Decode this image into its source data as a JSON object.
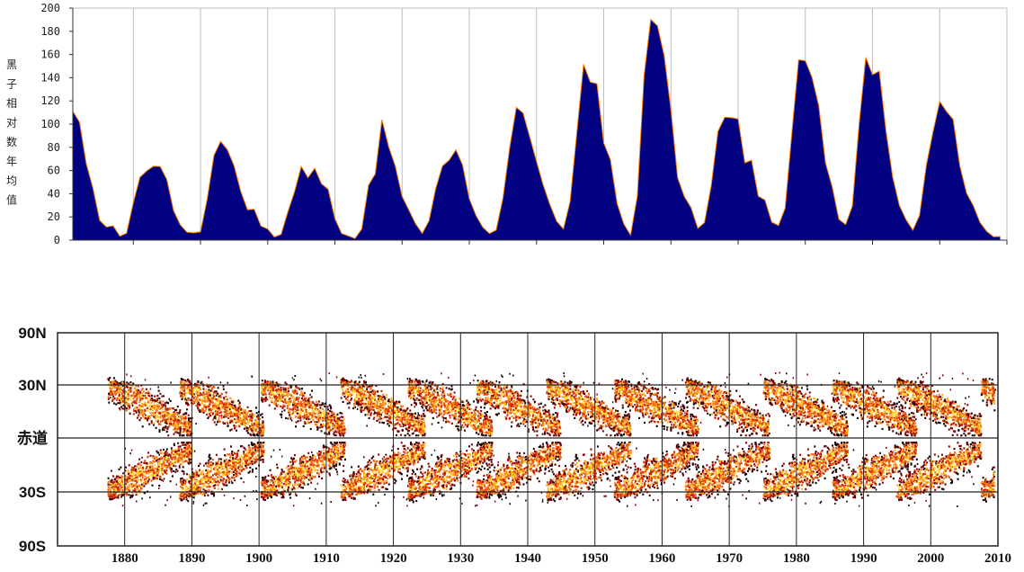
{
  "chart_data": [
    {
      "type": "area",
      "ylabel": "黑子相对数年均值",
      "ylim": [
        0,
        200
      ],
      "yticks": [
        "0",
        "20",
        "40",
        "60",
        "80",
        "100",
        "120",
        "140",
        "160",
        "180",
        "200"
      ],
      "xlim": [
        1871,
        2010
      ],
      "grid": true,
      "fill_color": "#000080",
      "edge_color": "#ff8000",
      "series": [
        {
          "x": [
            1871,
            1872,
            1873,
            1874,
            1875,
            1876,
            1877,
            1878,
            1879,
            1880,
            1881,
            1882,
            1883,
            1884,
            1885,
            1886,
            1887,
            1888,
            1889,
            1890,
            1891,
            1892,
            1893,
            1894,
            1895,
            1896,
            1897,
            1898,
            1899,
            1900,
            1901,
            1902,
            1903,
            1904,
            1905,
            1906,
            1907,
            1908,
            1909,
            1910,
            1911,
            1912,
            1913,
            1914,
            1915,
            1916,
            1917,
            1918,
            1919,
            1920,
            1921,
            1922,
            1923,
            1924,
            1925,
            1926,
            1927,
            1928,
            1929,
            1930,
            1931,
            1932,
            1933,
            1934,
            1935,
            1936,
            1937,
            1938,
            1939,
            1940,
            1941,
            1942,
            1943,
            1944,
            1945,
            1946,
            1947,
            1948,
            1949,
            1950,
            1951,
            1952,
            1953,
            1954,
            1955,
            1956,
            1957,
            1958,
            1959,
            1960,
            1961,
            1962,
            1963,
            1964,
            1965,
            1966,
            1967,
            1968,
            1969,
            1970,
            1971,
            1972,
            1973,
            1974,
            1975,
            1976,
            1977,
            1978,
            1979,
            1980,
            1981,
            1982,
            1983,
            1984,
            1985,
            1986,
            1987,
            1988,
            1989,
            1990,
            1991,
            1992,
            1993,
            1994,
            1995,
            1996,
            1997,
            1998,
            1999,
            2000,
            2001,
            2002,
            2003,
            2004,
            2005,
            2006,
            2007,
            2008,
            2009
          ],
          "values": [
            111.2,
            101.6,
            66.2,
            44.7,
            17.0,
            11.3,
            12.4,
            3.4,
            6.0,
            32.3,
            54.3,
            59.7,
            63.7,
            63.5,
            52.2,
            25.4,
            13.1,
            6.8,
            6.3,
            7.1,
            35.6,
            73.0,
            85.1,
            78.0,
            64.0,
            41.8,
            26.2,
            26.7,
            12.1,
            9.5,
            2.7,
            5.0,
            24.4,
            42.0,
            63.5,
            53.8,
            62.0,
            48.5,
            43.9,
            18.6,
            5.7,
            3.6,
            1.4,
            9.6,
            47.4,
            57.1,
            103.9,
            80.6,
            63.6,
            37.6,
            26.1,
            14.2,
            5.8,
            16.7,
            44.3,
            63.9,
            69.0,
            77.8,
            64.9,
            35.7,
            21.2,
            11.1,
            5.7,
            8.7,
            36.1,
            79.7,
            114.4,
            109.6,
            88.8,
            67.8,
            47.5,
            30.6,
            16.3,
            9.6,
            33.2,
            92.6,
            151.6,
            136.3,
            134.7,
            83.9,
            69.4,
            31.5,
            13.9,
            4.4,
            38.0,
            141.7,
            190.2,
            184.8,
            159.0,
            112.3,
            53.9,
            37.6,
            27.9,
            10.2,
            15.1,
            47.0,
            93.8,
            105.9,
            105.5,
            104.5,
            66.6,
            68.9,
            38.0,
            34.5,
            15.5,
            12.6,
            27.5,
            92.5,
            155.4,
            154.6,
            140.4,
            115.9,
            66.6,
            45.9,
            17.9,
            13.4,
            29.4,
            100.2,
            157.6,
            142.6,
            145.7,
            94.3,
            54.6,
            29.9,
            17.5,
            8.6,
            21.5,
            64.3,
            93.3,
            119.6,
            111.0,
            104.0,
            63.7,
            40.4,
            29.8,
            15.2,
            7.5,
            2.9,
            3.1
          ]
        }
      ]
    },
    {
      "type": "heatmap",
      "title_hint": "",
      "ylabels": [
        "90N",
        "30N",
        "赤道",
        "30S",
        "90S"
      ],
      "xlabels": [
        "1880",
        "1890",
        "1900",
        "1910",
        "1920",
        "1930",
        "1940",
        "1950",
        "1960",
        "1970",
        "1980",
        "1990",
        "2000",
        "2010"
      ],
      "xlim": [
        1870,
        2010
      ],
      "cycle_minima": [
        1878.9,
        1889.6,
        1901.7,
        1913.6,
        1923.6,
        1933.8,
        1944.2,
        1954.3,
        1964.9,
        1976.5,
        1986.8,
        1996.4,
        2008.9
      ]
    }
  ]
}
